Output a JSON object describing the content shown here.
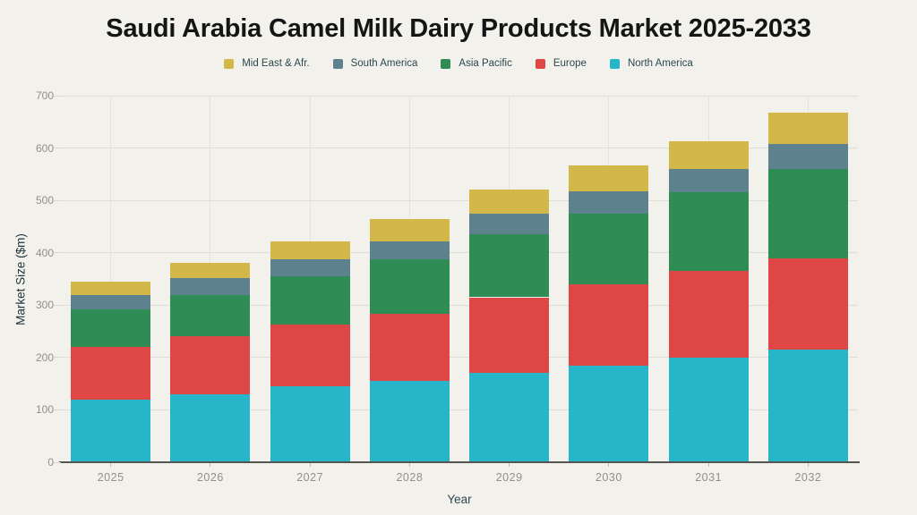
{
  "chart_data": {
    "type": "bar",
    "stacked": true,
    "title": "Saudi Arabia Camel Milk Dairy Products Market 2025-2033",
    "xlabel": "Year",
    "ylabel": "Market Size ($m)",
    "ylim": [
      0,
      700
    ],
    "y_ticks": [
      0,
      100,
      200,
      300,
      400,
      500,
      600,
      700
    ],
    "grid": true,
    "legend_position": "top",
    "legend_order": [
      "Mid East & Afr.",
      "South America",
      "Asia Pacific",
      "Europe",
      "North America"
    ],
    "categories": [
      "2025",
      "2026",
      "2027",
      "2028",
      "2029",
      "2030",
      "2031",
      "2032"
    ],
    "series": [
      {
        "name": "North America",
        "color": "#27b5c9",
        "values": [
          120,
          130,
          145,
          155,
          170,
          185,
          200,
          215
        ]
      },
      {
        "name": "Europe",
        "color": "#df4646",
        "values": [
          100,
          110,
          118,
          128,
          145,
          155,
          165,
          175
        ]
      },
      {
        "name": "Asia Pacific",
        "color": "#2f8c55",
        "values": [
          72,
          80,
          92,
          104,
          120,
          135,
          150,
          170
        ]
      },
      {
        "name": "South America",
        "color": "#5d828e",
        "values": [
          28,
          32,
          33,
          35,
          39,
          42,
          45,
          48
        ]
      },
      {
        "name": "Mid East & Afr.",
        "color": "#d2b84b",
        "values": [
          25,
          28,
          34,
          43,
          46,
          50,
          53,
          60
        ]
      }
    ],
    "totals": [
      345,
      380,
      422,
      465,
      520,
      567,
      613,
      668
    ],
    "colors": {
      "background": "#f2f1eb",
      "title_text": "#151515",
      "tick_text": "#908f89",
      "axis_title_text": "#2b4950",
      "axis_line": "#56544e",
      "gridline": "#deddd6"
    }
  }
}
